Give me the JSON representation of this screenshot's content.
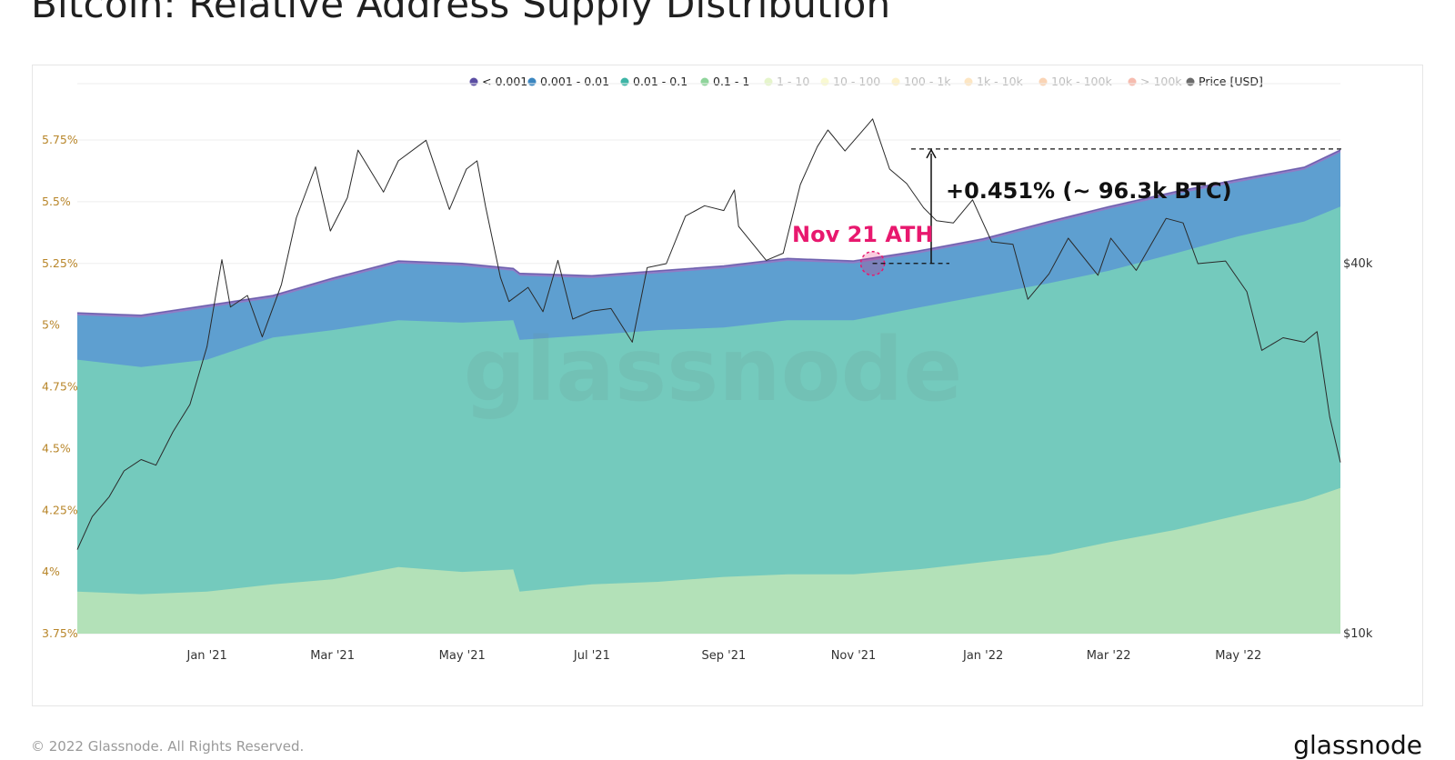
{
  "title": "Bitcoin: Relative Address Supply Distribution",
  "footer": {
    "copyright": "© 2022 Glassnode. All Rights Reserved.",
    "logo": "glassnode"
  },
  "colors": {
    "lt0001": "#5b4ea3",
    "lt0001_band": "#8f7cc6",
    "b0001_001": "#5e9fd0",
    "b001_01": "#74cabd",
    "b01_1": "#b3e1b8",
    "price_line": "#2a2a2a",
    "left_axis": "#b8862a",
    "right_axis": "#333333",
    "annotation_pink": "#e8186e",
    "watermark": "#7a9a9a"
  },
  "chart_data": {
    "type": "area",
    "title": "",
    "watermark": "glassnode",
    "legend": [
      {
        "label": "< 0.001",
        "color": "#5b4ea3",
        "active": true
      },
      {
        "label": "0.001 - 0.01",
        "color": "#3b86c0",
        "active": true
      },
      {
        "label": "0.01 - 0.1",
        "color": "#3eb5a6",
        "active": true
      },
      {
        "label": "0.1 - 1",
        "color": "#8fd49b",
        "active": true
      },
      {
        "label": "1 - 10",
        "color": "#c6e88c",
        "active": false
      },
      {
        "label": "10 - 100",
        "color": "#f1f29a",
        "active": false
      },
      {
        "label": "100 - 1k",
        "color": "#fbe28a",
        "active": false
      },
      {
        "label": "1k - 10k",
        "color": "#fbc77a",
        "active": false
      },
      {
        "label": "10k - 100k",
        "color": "#f5a05a",
        "active": false
      },
      {
        "label": "> 100k",
        "color": "#ec6a4e",
        "active": false
      },
      {
        "label": "Price [USD]",
        "color": "#6b6b6b",
        "active": true
      }
    ],
    "x_axis": {
      "range": [
        "2020-11-01",
        "2022-06-18"
      ],
      "ticks": [
        {
          "date": "2021-01-01",
          "label": "Jan '21"
        },
        {
          "date": "2021-03-01",
          "label": "Mar '21"
        },
        {
          "date": "2021-05-01",
          "label": "May '21"
        },
        {
          "date": "2021-07-01",
          "label": "Jul '21"
        },
        {
          "date": "2021-09-01",
          "label": "Sep '21"
        },
        {
          "date": "2021-11-01",
          "label": "Nov '21"
        },
        {
          "date": "2022-01-01",
          "label": "Jan '22"
        },
        {
          "date": "2022-03-01",
          "label": "Mar '22"
        },
        {
          "date": "2022-05-01",
          "label": "May '22"
        }
      ]
    },
    "y_left": {
      "unit": "%",
      "range": [
        3.75,
        5.75
      ],
      "ticks": [
        {
          "value": 5.75,
          "label": "5.75%"
        },
        {
          "value": 5.5,
          "label": "5.5%"
        },
        {
          "value": 5.25,
          "label": "5.25%"
        },
        {
          "value": 5.0,
          "label": "5%"
        },
        {
          "value": 4.75,
          "label": "4.75%"
        },
        {
          "value": 4.5,
          "label": "4.5%"
        },
        {
          "value": 4.25,
          "label": "4.25%"
        },
        {
          "value": 4.0,
          "label": "4%"
        },
        {
          "value": 3.75,
          "label": "3.75%"
        }
      ]
    },
    "y_right": {
      "scale": "log",
      "ticks": [
        {
          "value": 40000,
          "label": "$40k"
        },
        {
          "value": 10000,
          "label": "$10k"
        }
      ]
    },
    "series": [
      {
        "name": "0.1 - 1",
        "type": "stacked_area",
        "points": [
          [
            "2020-11-01",
            3.92
          ],
          [
            "2020-12-01",
            3.91
          ],
          [
            "2021-01-01",
            3.92
          ],
          [
            "2021-02-01",
            3.95
          ],
          [
            "2021-03-01",
            3.97
          ],
          [
            "2021-04-01",
            4.02
          ],
          [
            "2021-05-01",
            4.0
          ],
          [
            "2021-05-25",
            4.01
          ],
          [
            "2021-05-28",
            3.92
          ],
          [
            "2021-07-01",
            3.95
          ],
          [
            "2021-08-01",
            3.96
          ],
          [
            "2021-09-01",
            3.98
          ],
          [
            "2021-10-01",
            3.99
          ],
          [
            "2021-11-01",
            3.99
          ],
          [
            "2021-12-01",
            4.01
          ],
          [
            "2022-01-01",
            4.04
          ],
          [
            "2022-02-01",
            4.07
          ],
          [
            "2022-03-01",
            4.12
          ],
          [
            "2022-04-01",
            4.17
          ],
          [
            "2022-05-01",
            4.23
          ],
          [
            "2022-06-01",
            4.29
          ],
          [
            "2022-06-18",
            4.34
          ]
        ]
      },
      {
        "name": "0.01 - 0.1",
        "type": "stacked_area",
        "points": [
          [
            "2020-11-01",
            4.86
          ],
          [
            "2020-12-01",
            4.83
          ],
          [
            "2021-01-01",
            4.86
          ],
          [
            "2021-02-01",
            4.95
          ],
          [
            "2021-03-01",
            4.98
          ],
          [
            "2021-04-01",
            5.02
          ],
          [
            "2021-05-01",
            5.01
          ],
          [
            "2021-05-25",
            5.02
          ],
          [
            "2021-05-28",
            4.94
          ],
          [
            "2021-07-01",
            4.96
          ],
          [
            "2021-08-01",
            4.98
          ],
          [
            "2021-09-01",
            4.99
          ],
          [
            "2021-10-01",
            5.02
          ],
          [
            "2021-11-01",
            5.02
          ],
          [
            "2021-12-01",
            5.07
          ],
          [
            "2022-01-01",
            5.12
          ],
          [
            "2022-02-01",
            5.17
          ],
          [
            "2022-03-01",
            5.22
          ],
          [
            "2022-04-01",
            5.29
          ],
          [
            "2022-05-01",
            5.36
          ],
          [
            "2022-06-01",
            5.42
          ],
          [
            "2022-06-18",
            5.48
          ]
        ]
      },
      {
        "name": "0.001 - 0.01",
        "type": "stacked_area",
        "points": [
          [
            "2020-11-01",
            5.04
          ],
          [
            "2020-12-01",
            5.03
          ],
          [
            "2021-01-01",
            5.07
          ],
          [
            "2021-02-01",
            5.11
          ],
          [
            "2021-03-01",
            5.18
          ],
          [
            "2021-04-01",
            5.25
          ],
          [
            "2021-05-01",
            5.24
          ],
          [
            "2021-05-25",
            5.22
          ],
          [
            "2021-05-28",
            5.2
          ],
          [
            "2021-07-01",
            5.19
          ],
          [
            "2021-08-01",
            5.21
          ],
          [
            "2021-09-01",
            5.23
          ],
          [
            "2021-10-01",
            5.26
          ],
          [
            "2021-11-01",
            5.25
          ],
          [
            "2021-12-01",
            5.29
          ],
          [
            "2022-01-01",
            5.34
          ],
          [
            "2022-02-01",
            5.41
          ],
          [
            "2022-03-01",
            5.47
          ],
          [
            "2022-04-01",
            5.53
          ],
          [
            "2022-05-01",
            5.58
          ],
          [
            "2022-06-01",
            5.63
          ],
          [
            "2022-06-18",
            5.7
          ]
        ]
      },
      {
        "name": "< 0.001",
        "type": "stacked_area",
        "points": [
          [
            "2020-11-01",
            5.05
          ],
          [
            "2020-12-01",
            5.04
          ],
          [
            "2021-01-01",
            5.08
          ],
          [
            "2021-02-01",
            5.12
          ],
          [
            "2021-03-01",
            5.19
          ],
          [
            "2021-04-01",
            5.26
          ],
          [
            "2021-05-01",
            5.25
          ],
          [
            "2021-05-25",
            5.23
          ],
          [
            "2021-05-28",
            5.21
          ],
          [
            "2021-07-01",
            5.2
          ],
          [
            "2021-08-01",
            5.22
          ],
          [
            "2021-09-01",
            5.24
          ],
          [
            "2021-10-01",
            5.27
          ],
          [
            "2021-11-01",
            5.26
          ],
          [
            "2021-12-01",
            5.3
          ],
          [
            "2022-01-01",
            5.35
          ],
          [
            "2022-02-01",
            5.42
          ],
          [
            "2022-03-01",
            5.48
          ],
          [
            "2022-04-01",
            5.54
          ],
          [
            "2022-05-01",
            5.59
          ],
          [
            "2022-06-01",
            5.64
          ],
          [
            "2022-06-18",
            5.71
          ]
        ]
      },
      {
        "name": "Price [USD]",
        "type": "line",
        "axis": "right",
        "points": [
          [
            "2020-11-01",
            13700
          ],
          [
            "2020-11-08",
            15500
          ],
          [
            "2020-11-16",
            16700
          ],
          [
            "2020-11-23",
            18400
          ],
          [
            "2020-12-01",
            19200
          ],
          [
            "2020-12-08",
            18800
          ],
          [
            "2020-12-16",
            21300
          ],
          [
            "2020-12-24",
            23600
          ],
          [
            "2021-01-01",
            29300
          ],
          [
            "2021-01-08",
            40600
          ],
          [
            "2021-01-12",
            34000
          ],
          [
            "2021-01-20",
            35500
          ],
          [
            "2021-01-27",
            30400
          ],
          [
            "2021-02-05",
            37000
          ],
          [
            "2021-02-12",
            47500
          ],
          [
            "2021-02-21",
            57500
          ],
          [
            "2021-02-28",
            45200
          ],
          [
            "2021-03-08",
            51200
          ],
          [
            "2021-03-13",
            61200
          ],
          [
            "2021-03-25",
            52300
          ],
          [
            "2021-04-01",
            58800
          ],
          [
            "2021-04-14",
            63500
          ],
          [
            "2021-04-25",
            49000
          ],
          [
            "2021-05-03",
            57000
          ],
          [
            "2021-05-08",
            58800
          ],
          [
            "2021-05-12",
            49500
          ],
          [
            "2021-05-19",
            38000
          ],
          [
            "2021-05-23",
            34700
          ],
          [
            "2021-06-01",
            36600
          ],
          [
            "2021-06-08",
            33400
          ],
          [
            "2021-06-15",
            40500
          ],
          [
            "2021-06-22",
            32500
          ],
          [
            "2021-07-01",
            33500
          ],
          [
            "2021-07-10",
            33800
          ],
          [
            "2021-07-20",
            29800
          ],
          [
            "2021-07-27",
            39400
          ],
          [
            "2021-08-05",
            40000
          ],
          [
            "2021-08-14",
            47800
          ],
          [
            "2021-08-23",
            49700
          ],
          [
            "2021-09-01",
            48800
          ],
          [
            "2021-09-06",
            52700
          ],
          [
            "2021-09-08",
            46000
          ],
          [
            "2021-09-21",
            40500
          ],
          [
            "2021-09-29",
            41600
          ],
          [
            "2021-10-07",
            53800
          ],
          [
            "2021-10-15",
            62000
          ],
          [
            "2021-10-20",
            66000
          ],
          [
            "2021-10-28",
            61000
          ],
          [
            "2021-11-08",
            67500
          ],
          [
            "2021-11-10",
            68800
          ],
          [
            "2021-11-18",
            57000
          ],
          [
            "2021-11-26",
            54000
          ],
          [
            "2021-12-04",
            49300
          ],
          [
            "2021-12-10",
            47000
          ],
          [
            "2021-12-18",
            46600
          ],
          [
            "2021-12-27",
            50800
          ],
          [
            "2022-01-05",
            43400
          ],
          [
            "2022-01-15",
            43000
          ],
          [
            "2022-01-22",
            35000
          ],
          [
            "2022-02-01",
            38500
          ],
          [
            "2022-02-10",
            44000
          ],
          [
            "2022-02-24",
            38300
          ],
          [
            "2022-03-02",
            44000
          ],
          [
            "2022-03-14",
            39000
          ],
          [
            "2022-03-28",
            47400
          ],
          [
            "2022-04-05",
            46600
          ],
          [
            "2022-04-12",
            40000
          ],
          [
            "2022-04-25",
            40400
          ],
          [
            "2022-05-05",
            36000
          ],
          [
            "2022-05-12",
            28900
          ],
          [
            "2022-05-22",
            30300
          ],
          [
            "2022-06-01",
            29800
          ],
          [
            "2022-06-07",
            31000
          ],
          [
            "2022-06-13",
            22500
          ],
          [
            "2022-06-18",
            19000
          ]
        ]
      }
    ],
    "annotations": {
      "ath_label": "Nov 21 ATH",
      "ath_date": "2021-11-10",
      "ath_value": 5.25,
      "delta_label": "+0.451% (~ 96.3k BTC)",
      "delta_end_value": 5.71
    }
  }
}
